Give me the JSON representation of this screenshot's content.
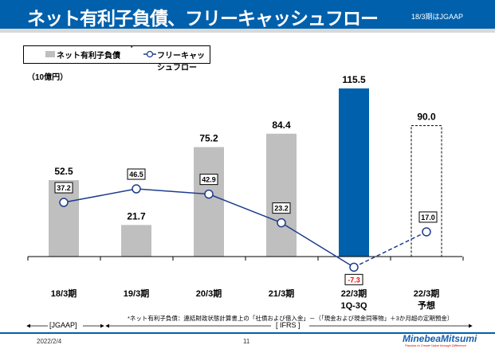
{
  "header": {
    "title": "ネット有利子負債、フリーキャッシュフロー",
    "note": "18/3期はJGAAP"
  },
  "unit": "（10億円）",
  "footnote": "*ネット有利子負債：連結財政状態計算書上の「社債および借入金」－（「現金および現金同等物」＋3か月超の定期預金）",
  "periods": {
    "jgaap": "[JGAAP]",
    "ifrs": "[ IFRS ]"
  },
  "footer": {
    "date": "2022/2/4",
    "page": "11",
    "logo": "MinebeaMitsumi",
    "tagline": "Passion to Create Value through Difference"
  },
  "colors": {
    "bar": "#bfbfbf",
    "bar_highlight": "#0060ac",
    "line": "#1f3d8c",
    "negative": "#ff0000"
  },
  "chart_data": {
    "type": "bar+line",
    "categories": [
      [
        "18/3期"
      ],
      [
        "19/3期"
      ],
      [
        "20/3期"
      ],
      [
        "21/3期"
      ],
      [
        "22/3期",
        "1Q-3Q"
      ],
      [
        "22/3期",
        "予想"
      ]
    ],
    "series": [
      {
        "name": "ネット有利子負債",
        "name_mark": "*",
        "type": "bar",
        "values": [
          52.5,
          21.7,
          75.2,
          84.4,
          115.5,
          90.0
        ],
        "labels": [
          "52.5",
          "21.7",
          "75.2",
          "84.4",
          "115.5",
          "90.0"
        ],
        "highlight_index": 4,
        "forecast_index": 5
      },
      {
        "name": "フリーキャッシュフロー",
        "type": "line",
        "values": [
          37.2,
          46.5,
          42.9,
          23.2,
          -7.3,
          17.0
        ],
        "labels": [
          "37.2",
          "46.5",
          "42.9",
          "23.2",
          "-7.3",
          "17.0"
        ],
        "dashed_from_index": 4
      }
    ],
    "ylabel": "（10億円）",
    "legend": "top-left"
  }
}
